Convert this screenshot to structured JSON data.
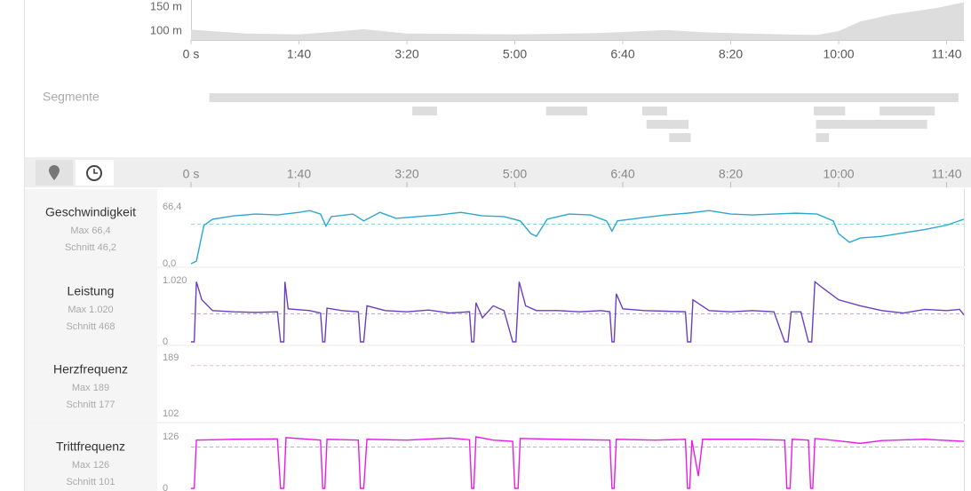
{
  "elevation": {
    "yticks": [
      {
        "value": 150,
        "label": "150 m"
      },
      {
        "value": 100,
        "label": "100 m"
      }
    ],
    "ylim": [
      81,
      164
    ],
    "x": [
      0,
      50,
      100,
      140,
      160,
      200,
      300,
      380,
      440,
      480,
      550,
      580,
      600,
      620,
      650,
      690,
      716
    ],
    "values": [
      103,
      95,
      93,
      100,
      104,
      95,
      93,
      96,
      102,
      97,
      93,
      92,
      100,
      120,
      135,
      148,
      160
    ]
  },
  "time_axis": {
    "xlim": [
      0,
      716
    ],
    "ticks": [
      {
        "value": 0,
        "label": "0 s"
      },
      {
        "value": 100,
        "label": "1:40"
      },
      {
        "value": 200,
        "label": "3:20"
      },
      {
        "value": 300,
        "label": "5:00"
      },
      {
        "value": 400,
        "label": "6:40"
      },
      {
        "value": 500,
        "label": "8:20"
      },
      {
        "value": 600,
        "label": "10:00"
      },
      {
        "value": 700,
        "label": "11:40"
      }
    ]
  },
  "segments": {
    "label": "Segmente",
    "rows": [
      [
        {
          "start": 17,
          "end": 711
        }
      ],
      [
        {
          "start": 205,
          "end": 228
        },
        {
          "start": 329,
          "end": 367
        },
        {
          "start": 418,
          "end": 441
        },
        {
          "start": 577,
          "end": 606
        },
        {
          "start": 638,
          "end": 689
        }
      ],
      [
        {
          "start": 422,
          "end": 461
        },
        {
          "start": 579,
          "end": 682
        }
      ],
      [
        {
          "start": 443,
          "end": 463
        },
        {
          "start": 579,
          "end": 591
        }
      ]
    ]
  },
  "panels": [
    {
      "name": "Geschwindigkeit",
      "max_label": "Max 66,4",
      "avg_label": "Schnitt 46,2",
      "avg": 46.2,
      "color": "#2ea6d0",
      "ylim": [
        0,
        66.4
      ],
      "yticks": [
        {
          "value": 0,
          "label": "0,0"
        },
        {
          "value": 66.4,
          "label": "66,4"
        }
      ],
      "x": [
        0,
        5,
        12,
        20,
        40,
        60,
        80,
        100,
        110,
        120,
        125,
        130,
        150,
        160,
        175,
        190,
        210,
        230,
        250,
        270,
        290,
        305,
        315,
        320,
        330,
        350,
        370,
        385,
        390,
        395,
        420,
        440,
        460,
        480,
        500,
        520,
        540,
        560,
        580,
        595,
        600,
        610,
        620,
        640,
        660,
        680,
        700,
        716
      ],
      "values": [
        0,
        3,
        45,
        52,
        56,
        58,
        57,
        60,
        62,
        58,
        44,
        55,
        58,
        50,
        60,
        53,
        55,
        57,
        60,
        56,
        55,
        50,
        35,
        32,
        52,
        58,
        57,
        50,
        38,
        50,
        54,
        57,
        59,
        62,
        58,
        57,
        58,
        59,
        58,
        50,
        35,
        25,
        30,
        32,
        36,
        40,
        45,
        52
      ]
    },
    {
      "name": "Leistung",
      "max_label": "Max 1.020",
      "avg_label": "Schnitt 468",
      "avg": 468,
      "color": "#6a3fc0",
      "ylim": [
        0,
        1020
      ],
      "yticks": [
        0,
        {
          "value": 1020,
          "label": "1.020"
        }
      ],
      "x": [
        0,
        3,
        5,
        10,
        20,
        40,
        60,
        80,
        83,
        86,
        87,
        90,
        110,
        120,
        122,
        124,
        126,
        140,
        155,
        157,
        160,
        163,
        180,
        200,
        220,
        240,
        258,
        260,
        262,
        264,
        270,
        280,
        290,
        298,
        301,
        304,
        310,
        320,
        340,
        360,
        380,
        388,
        390,
        392,
        394,
        400,
        420,
        440,
        458,
        460,
        463,
        465,
        480,
        500,
        520,
        540,
        550,
        553,
        556,
        565,
        572,
        575,
        578,
        585,
        600,
        620,
        640,
        660,
        680,
        700,
        712,
        716
      ],
      "values": [
        0,
        0,
        1000,
        700,
        520,
        500,
        490,
        500,
        0,
        0,
        1000,
        550,
        520,
        480,
        0,
        0,
        560,
        520,
        500,
        0,
        0,
        600,
        520,
        500,
        530,
        480,
        500,
        0,
        0,
        650,
        400,
        600,
        520,
        0,
        0,
        1000,
        600,
        520,
        520,
        500,
        520,
        500,
        0,
        0,
        800,
        550,
        520,
        510,
        500,
        0,
        0,
        700,
        520,
        500,
        520,
        500,
        0,
        0,
        500,
        500,
        0,
        0,
        1000,
        900,
        700,
        600,
        520,
        480,
        540,
        520,
        540,
        450
      ]
    },
    {
      "name": "Herzfrequenz",
      "max_label": "Max 189",
      "avg_label": "Schnitt 177",
      "avg": 177,
      "color": "#e07a8a",
      "ylim": [
        102,
        189
      ],
      "yticks": [
        102,
        189
      ]
    },
    {
      "name": "Trittfrequenz",
      "max_label": "Max 126",
      "avg_label": "Schnitt 101",
      "avg": 101,
      "color": "#e81be8",
      "ylim": [
        0,
        126
      ],
      "yticks": [
        0,
        126
      ],
      "x": [
        0,
        3,
        5,
        40,
        80,
        83,
        86,
        88,
        120,
        122,
        124,
        126,
        155,
        157,
        160,
        163,
        200,
        240,
        258,
        260,
        262,
        264,
        280,
        298,
        300,
        303,
        305,
        340,
        388,
        390,
        392,
        394,
        430,
        458,
        460,
        462,
        464,
        470,
        474,
        520,
        550,
        552,
        555,
        557,
        572,
        574,
        576,
        578,
        600,
        620,
        640,
        680,
        716
      ],
      "values": [
        0,
        0,
        118,
        120,
        121,
        0,
        0,
        124,
        118,
        0,
        0,
        120,
        118,
        0,
        0,
        120,
        118,
        123,
        119,
        0,
        0,
        126,
        118,
        115,
        0,
        0,
        122,
        120,
        118,
        0,
        0,
        120,
        118,
        120,
        0,
        0,
        118,
        30,
        120,
        120,
        118,
        0,
        0,
        120,
        118,
        0,
        0,
        122,
        116,
        110,
        117,
        120,
        115
      ]
    }
  ]
}
